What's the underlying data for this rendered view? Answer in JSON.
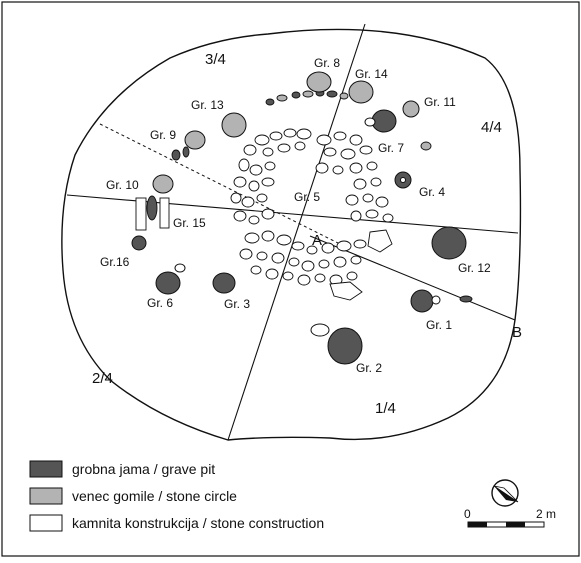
{
  "colors": {
    "grave_pit": "#555555",
    "stone_circle": "#b3b3b3",
    "stone_construction": "#ffffff",
    "line": "#111111"
  },
  "quadrants": [
    "3/4",
    "4/4",
    "2/4",
    "1/4"
  ],
  "graves": [
    "Gr. 8",
    "Gr. 14",
    "Gr. 11",
    "Gr. 13",
    "Gr. 9",
    "Gr. 7",
    "Gr. 10",
    "Gr. 4",
    "Gr. 5",
    "Gr. 15",
    "Gr.16",
    "Gr. 12",
    "Gr. 6",
    "Gr. 3",
    "Gr. 1",
    "Gr. 2"
  ],
  "points": {
    "a": "A",
    "b": "B"
  },
  "legend": [
    {
      "label": "grobna jama / grave pit"
    },
    {
      "label": "venec gomile / stone circle"
    },
    {
      "label": "kamnita konstrukcija / stone construction"
    }
  ],
  "scale": {
    "start": "0",
    "end": "2 m",
    "icon": "north-arrow-icon"
  }
}
